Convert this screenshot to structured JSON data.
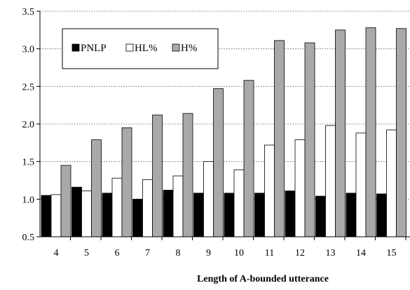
{
  "chart_data": {
    "type": "bar",
    "title": "",
    "xlabel": "Length of A-bounded  utterance",
    "ylabel": "",
    "categories": [
      "4",
      "5",
      "6",
      "7",
      "8",
      "9",
      "10",
      "11",
      "12",
      "13",
      "14",
      "15"
    ],
    "ylim": [
      0.5,
      3.5
    ],
    "yticks": [
      "0.5",
      "1.0",
      "1.5",
      "2.0",
      "2.5",
      "3.0",
      "3.5"
    ],
    "grid": true,
    "legend_position": "top-left",
    "series": [
      {
        "name": "PNLP",
        "color": "#000000",
        "values": [
          1.05,
          1.16,
          1.08,
          1.0,
          1.12,
          1.08,
          1.08,
          1.08,
          1.11,
          1.04,
          1.08,
          1.07
        ]
      },
      {
        "name": "HL%",
        "color": "#ffffff",
        "values": [
          1.06,
          1.11,
          1.28,
          1.26,
          1.31,
          1.5,
          1.39,
          1.72,
          1.79,
          1.98,
          1.88,
          1.92
        ]
      },
      {
        "name": "H%",
        "color": "#a9a9a9",
        "values": [
          1.45,
          1.79,
          1.95,
          2.12,
          2.14,
          2.47,
          2.58,
          3.11,
          3.08,
          3.25,
          3.28,
          3.27
        ]
      }
    ]
  }
}
